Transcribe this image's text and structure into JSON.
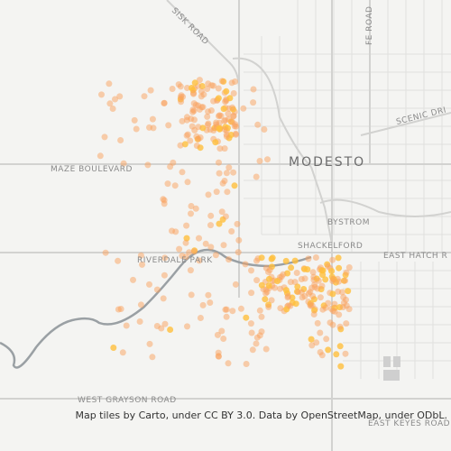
{
  "map": {
    "labels": {
      "sisk_road": "SISK ROAD",
      "modesto": "MODESTO",
      "scenic": "SCENIC DRI",
      "maze": "MAZE BOULEVARD",
      "bystrom": "BYSTROM",
      "shackelford": "SHACKELFORD",
      "hatch": "EAST HATCH R",
      "riverdale": "RIVERDALE PARK",
      "grayson": "WEST GRAYSON ROAD",
      "keyes": "EAST KEYES ROAD",
      "santa_fe": "FE ROAD"
    },
    "attribution": "Map tiles by Carto, under CC BY 3.0. Data by OpenStreetMap, under ODbL."
  }
}
